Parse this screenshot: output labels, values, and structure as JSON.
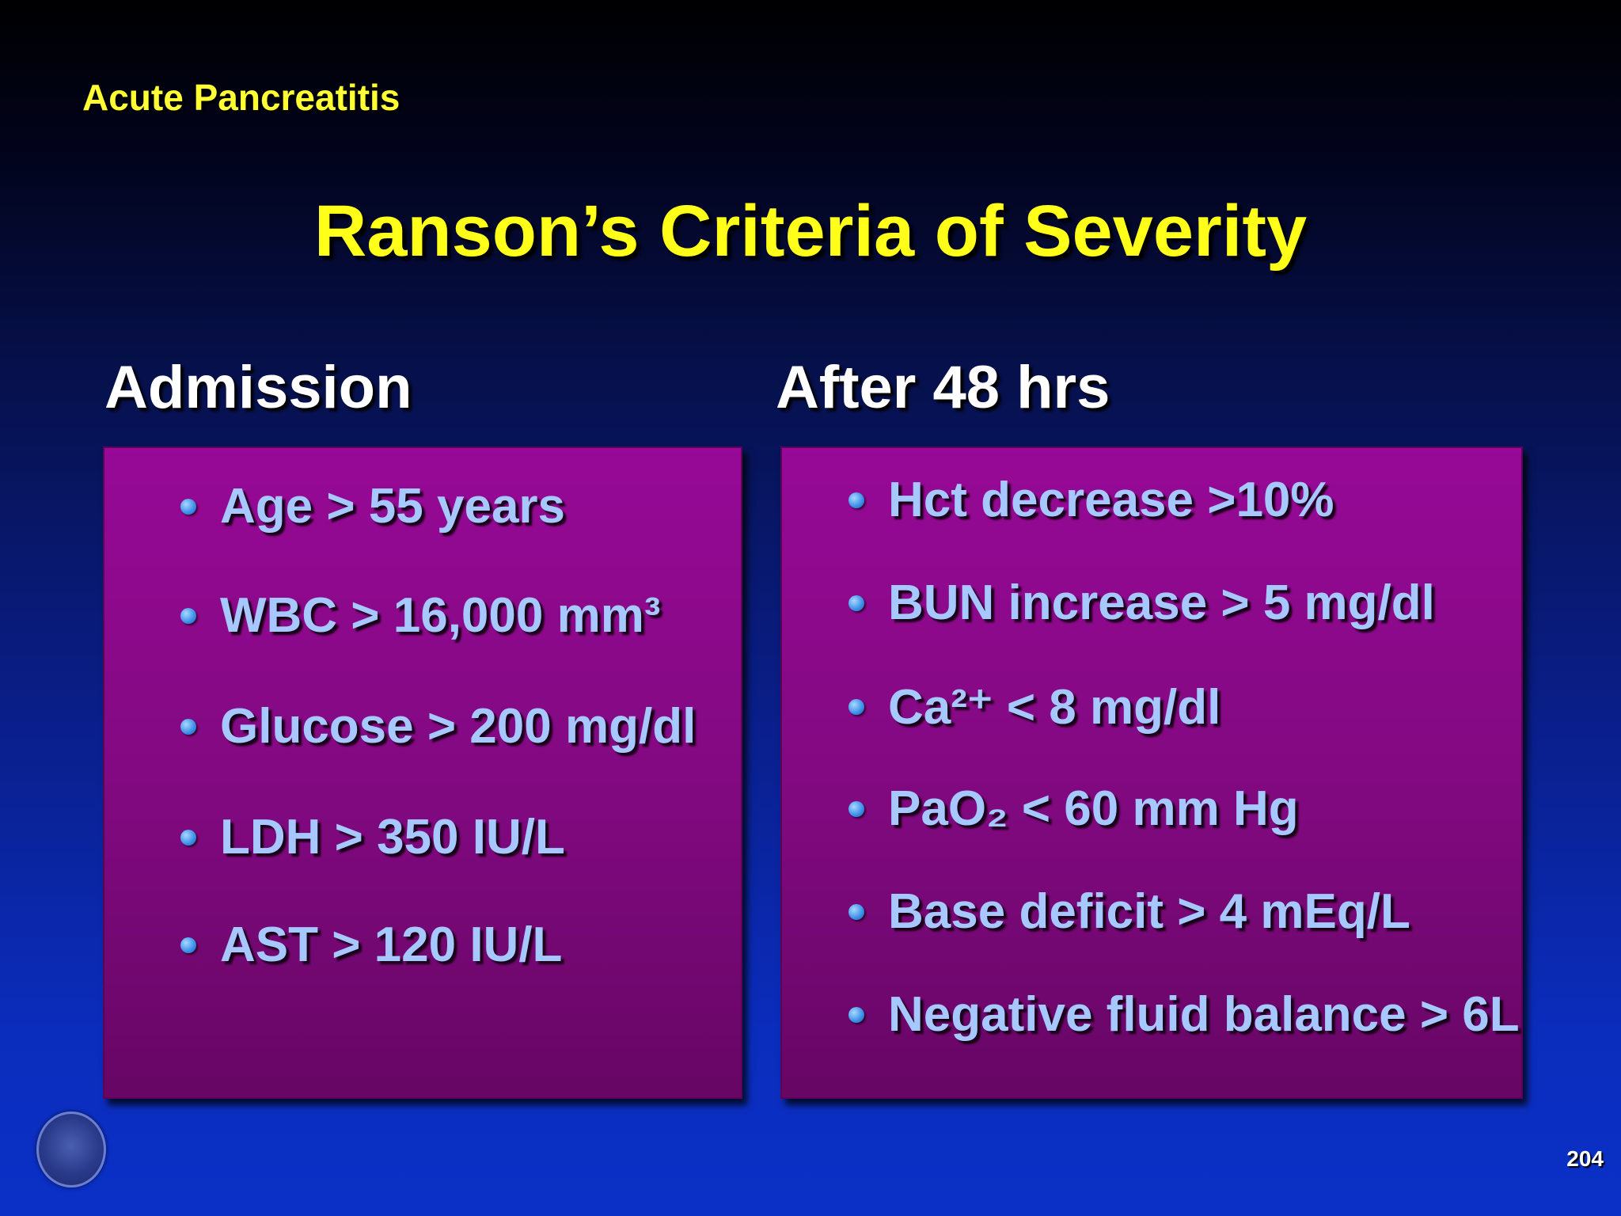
{
  "slide": {
    "section_label": "Acute Pancreatitis",
    "title": "Ranson’s Criteria of Severity",
    "slide_number": "204"
  },
  "admission": {
    "heading": "Admission",
    "items": [
      "Age > 55 years",
      "WBC > 16,000 mm³",
      "Glucose > 200 mg/dl",
      "LDH > 350 IU/L",
      "AST > 120 IU/L"
    ]
  },
  "after48": {
    "heading": "After 48 hrs",
    "items": [
      "Hct decrease >10%",
      "BUN increase > 5 mg/dl",
      "Ca²⁺ < 8 mg/dl",
      "PaO₂ < 60 mm Hg",
      "Base deficit > 4 mEq/L",
      "Negative fluid balance > 6L"
    ]
  },
  "logo": {
    "icon": "institution-seal-icon"
  },
  "colors": {
    "title": "#ffff1a",
    "box": "#8a088a",
    "item_text": "#a6c8ff",
    "heading": "#ffffff"
  }
}
